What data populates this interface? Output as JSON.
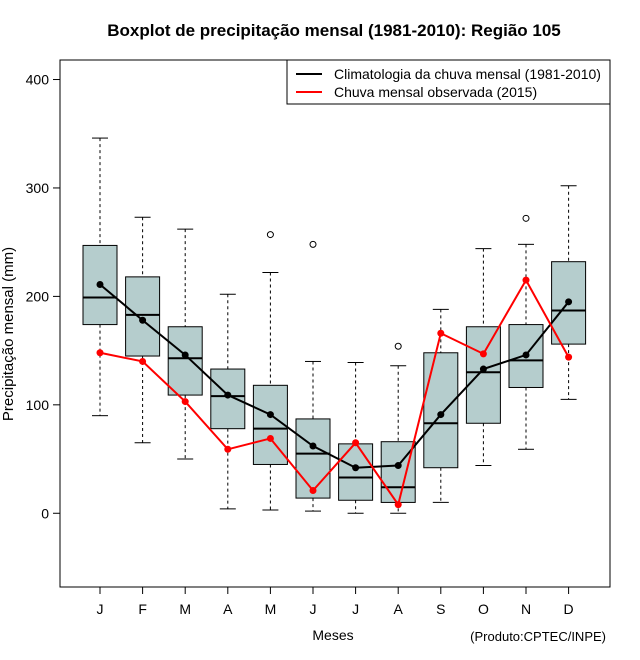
{
  "chart_data": {
    "type": "boxplot",
    "title": "Boxplot de precipitação mensal (1981-2010): Região 105",
    "xlabel": "Meses",
    "ylabel": "Precipitação mensal (mm)",
    "credit": "(Produto:CPTEC/INPE)",
    "ylim": [
      -68,
      418
    ],
    "yticks": [
      "0",
      "100",
      "200",
      "300",
      "400"
    ],
    "ytick_values": [
      0,
      100,
      200,
      300,
      400
    ],
    "categories": [
      "J",
      "F",
      "M",
      "A",
      "M",
      "J",
      "J",
      "A",
      "S",
      "O",
      "N",
      "D"
    ],
    "boxes": [
      {
        "whisker_low": 90,
        "q1": 174,
        "median": 199,
        "q3": 247,
        "whisker_high": 346,
        "outliers": []
      },
      {
        "whisker_low": 65,
        "q1": 145,
        "median": 183,
        "q3": 218,
        "whisker_high": 273,
        "outliers": []
      },
      {
        "whisker_low": 50,
        "q1": 109,
        "median": 143,
        "q3": 172,
        "whisker_high": 262,
        "outliers": []
      },
      {
        "whisker_low": 4,
        "q1": 78,
        "median": 108,
        "q3": 133,
        "whisker_high": 202,
        "outliers": []
      },
      {
        "whisker_low": 3,
        "q1": 45,
        "median": 78,
        "q3": 118,
        "whisker_high": 222,
        "outliers": [
          257
        ]
      },
      {
        "whisker_low": 2,
        "q1": 14,
        "median": 55,
        "q3": 87,
        "whisker_high": 140,
        "outliers": [
          248
        ]
      },
      {
        "whisker_low": 0,
        "q1": 12,
        "median": 33,
        "q3": 64,
        "whisker_high": 139,
        "outliers": []
      },
      {
        "whisker_low": 0,
        "q1": 10,
        "median": 24,
        "q3": 66,
        "whisker_high": 136,
        "outliers": [
          154
        ]
      },
      {
        "whisker_low": 10,
        "q1": 42,
        "median": 83,
        "q3": 148,
        "whisker_high": 188,
        "outliers": []
      },
      {
        "whisker_low": 44,
        "q1": 83,
        "median": 130,
        "q3": 172,
        "whisker_high": 244,
        "outliers": []
      },
      {
        "whisker_low": 59,
        "q1": 116,
        "median": 141,
        "q3": 174,
        "whisker_high": 248,
        "outliers": [
          272
        ]
      },
      {
        "whisker_low": 105,
        "q1": 156,
        "median": 187,
        "q3": 232,
        "whisker_high": 302,
        "outliers": []
      }
    ],
    "series": [
      {
        "name": "Climatologia da chuva mensal (1981-2010)",
        "color": "#000000",
        "values": [
          211,
          178,
          146,
          109,
          91,
          62,
          42,
          44,
          91,
          133,
          146,
          195
        ]
      },
      {
        "name": "Chuva mensal observada (2015)",
        "color": "#ff0000",
        "values": [
          148,
          140,
          103,
          59,
          69,
          21,
          65,
          8,
          166,
          147,
          215,
          144
        ]
      }
    ],
    "box_fill": "#b5cdcd",
    "legend_position": "top-right"
  }
}
